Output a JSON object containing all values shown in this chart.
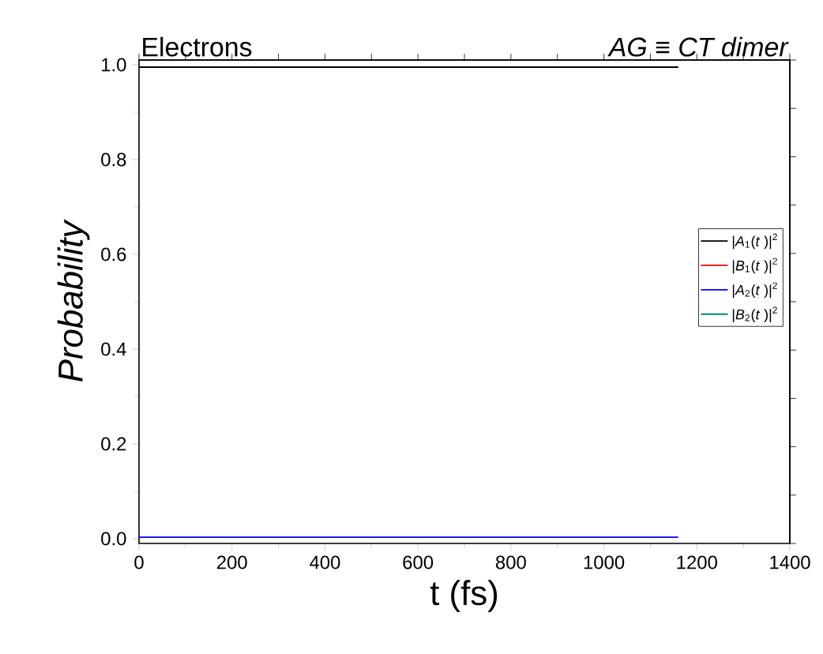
{
  "chart_data": {
    "type": "line",
    "title": "Electrons",
    "subtitle": "AG ≡ CT dimer",
    "xlabel": "t (fs)",
    "ylabel": "Probability",
    "x": [
      0,
      1160
    ],
    "series": [
      {
        "name": "|*A*$_{1}$(*t* )|$^{2}$",
        "color": "#000000",
        "values": [
          0.995,
          0.995
        ]
      },
      {
        "name": "|*B*$_{1}$(*t* )|$^{2}$",
        "color": "#ff0000",
        "values": [
          null,
          null
        ]
      },
      {
        "name": "|*A*$_{2}$(*t* )|$^{2}$",
        "color": "#0000ff",
        "values": [
          0.003,
          0.003
        ]
      },
      {
        "name": "|*B*$_{2}$(*t* )|$^{2}$",
        "color": "#008080",
        "values": [
          null,
          null
        ]
      }
    ],
    "xlim": [
      0,
      1400
    ],
    "xticks": [
      0,
      200,
      400,
      600,
      800,
      1000,
      1200,
      1400
    ],
    "ylim": [
      -0.01,
      1.01
    ],
    "yticks": [
      {
        "value": 0,
        "label": "0.0"
      },
      {
        "value": 0.2,
        "label": "0.2"
      },
      {
        "value": 0.4,
        "label": "0.4"
      },
      {
        "value": 0.6,
        "label": "0.6"
      },
      {
        "value": 0.8,
        "label": "0.8"
      },
      {
        "value": 1,
        "label": "1.0"
      }
    ],
    "legend": "right",
    "grid": false,
    "marker": "none",
    "line_style": "solid"
  }
}
